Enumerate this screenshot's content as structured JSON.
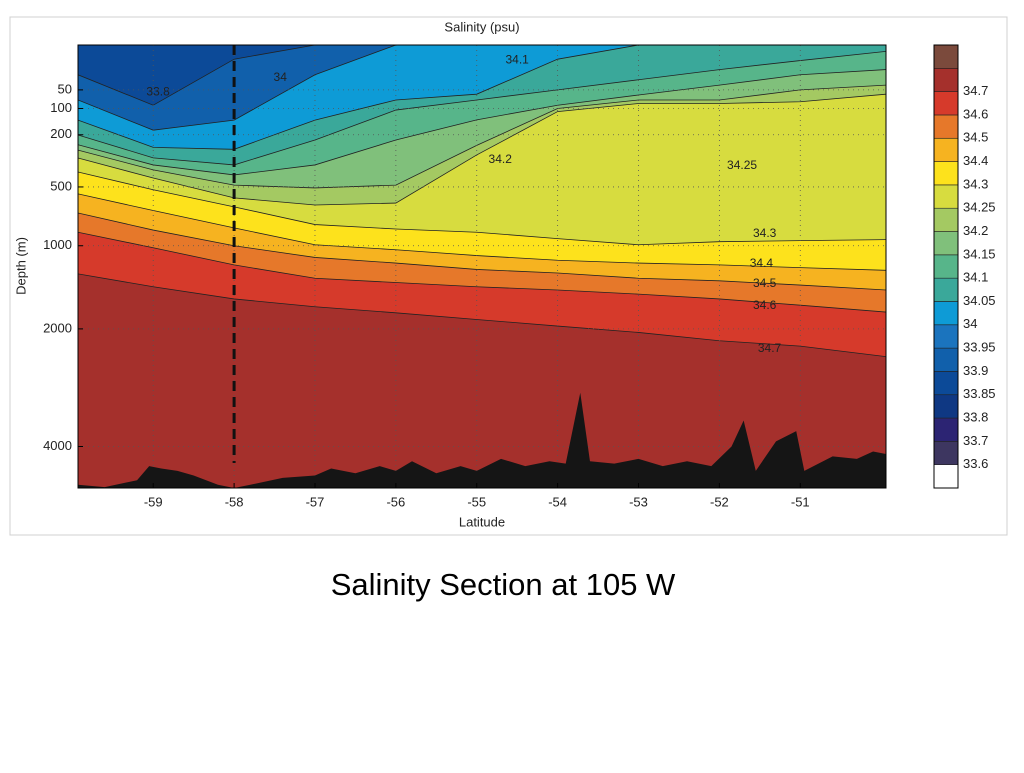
{
  "caption": "Salinity Section at 105 W",
  "chart_data": {
    "type": "contour",
    "title": "Salinity (psu)",
    "x_label": "Latitude",
    "y_label": "Depth (m)",
    "xlim": [
      -59.93,
      -49.94
    ],
    "ylim": [
      0,
      4870
    ],
    "yscale": "sqrt",
    "y_inverted": true,
    "xticks": [
      -59,
      -58,
      -57,
      -56,
      -55,
      -54,
      -53,
      -52,
      -51
    ],
    "yticks": [
      50,
      100,
      200,
      500,
      1000,
      2000,
      4000
    ],
    "grid": true,
    "station_x": -58,
    "colorbar": {
      "levels": [
        33.6,
        33.7,
        33.8,
        33.85,
        33.9,
        33.95,
        34,
        34.05,
        34.1,
        34.15,
        34.2,
        34.25,
        34.3,
        34.4,
        34.5,
        34.6,
        34.7
      ],
      "colors": [
        "#ffffff",
        "#3d3660",
        "#2c2473",
        "#0f3883",
        "#0c4a98",
        "#1160ab",
        "#1b74be",
        "#0e9bd6",
        "#3aa89a",
        "#57b58a",
        "#80c07b",
        "#a4c962",
        "#d7dc3f",
        "#fde21c",
        "#f6b320",
        "#e6782a",
        "#d63a2b",
        "#a5302c",
        "#7b4a3c"
      ]
    },
    "contour_x": [
      -59.93,
      -59,
      -58,
      -57,
      -56,
      -55,
      -54,
      -53,
      -52,
      -51,
      -49.94
    ],
    "contours": [
      {
        "level": 33.9,
        "depth": [
          22,
          90,
          5,
          0,
          0,
          0,
          0,
          0,
          0,
          0,
          0
        ]
      },
      {
        "level": 34,
        "depth": [
          75,
          180,
          140,
          22,
          0,
          0,
          0,
          0,
          0,
          0,
          0
        ]
      },
      {
        "level": 34.05,
        "depth": [
          140,
          260,
          270,
          140,
          75,
          60,
          5,
          0,
          0,
          0,
          0
        ]
      },
      {
        "level": 34.1,
        "depth": [
          201,
          316,
          357,
          224,
          105,
          75,
          50,
          30,
          15,
          6,
          1
        ]
      },
      {
        "level": 34.15,
        "depth": [
          247,
          357,
          419,
          357,
          224,
          139,
          90,
          62,
          40,
          22,
          15
        ]
      },
      {
        "level": 34.2,
        "depth": [
          274,
          387,
          487,
          507,
          487,
          250,
          100,
          75,
          75,
          50,
          40
        ]
      },
      {
        "level": 34.25,
        "depth": [
          317,
          439,
          580,
          635,
          620,
          300,
          110,
          85,
          85,
          80,
          60
        ]
      },
      {
        "level": 34.3,
        "depth": [
          400,
          520,
          650,
          800,
          840,
          870,
          930,
          990,
          960,
          950,
          940
        ]
      },
      {
        "level": 34.4,
        "depth": [
          550,
          680,
          830,
          990,
          1040,
          1100,
          1150,
          1180,
          1200,
          1230,
          1260
        ]
      },
      {
        "level": 34.5,
        "depth": [
          700,
          850,
          1000,
          1120,
          1180,
          1250,
          1290,
          1350,
          1380,
          1430,
          1490
        ]
      },
      {
        "level": 34.6,
        "depth": [
          870,
          1020,
          1200,
          1350,
          1400,
          1450,
          1490,
          1540,
          1600,
          1680,
          1770
        ]
      },
      {
        "level": 34.7,
        "depth": [
          1300,
          1450,
          1600,
          1700,
          1780,
          1870,
          1960,
          2050,
          2170,
          2250,
          2410
        ]
      }
    ],
    "contour_labels": [
      {
        "level": 34.1,
        "x": -54.5,
        "depth": 6
      },
      {
        "level": 34,
        "x": -57.43,
        "depth": 27
      },
      {
        "level": 33.8,
        "x": -58.94,
        "depth": 55
      },
      {
        "level": 34.2,
        "x": -54.71,
        "depth": 328
      },
      {
        "level": 34.25,
        "x": -51.72,
        "depth": 363
      },
      {
        "level": 34.3,
        "x": -51.44,
        "depth": 886
      },
      {
        "level": 34.4,
        "x": -51.48,
        "depth": 1190
      },
      {
        "level": 34.5,
        "x": -51.44,
        "depth": 1417
      },
      {
        "level": 34.6,
        "x": -51.44,
        "depth": 1690
      },
      {
        "level": 34.7,
        "x": -51.38,
        "depth": 2293
      }
    ],
    "bathymetry": {
      "color": "#151515",
      "x": [
        -59.93,
        -59.6,
        -59.2,
        -59.05,
        -58.9,
        -58.7,
        -58.5,
        -58.2,
        -58,
        -57.8,
        -57.4,
        -57,
        -56.8,
        -56.5,
        -56.2,
        -56,
        -55.8,
        -55.5,
        -55.2,
        -55,
        -54.7,
        -54.4,
        -54.1,
        -53.9,
        -53.72,
        -53.6,
        -53.3,
        -53,
        -52.7,
        -52.4,
        -52.1,
        -51.85,
        -51.7,
        -51.55,
        -51.3,
        -51.05,
        -50.95,
        -50.6,
        -50.3,
        -50.1,
        -49.94
      ],
      "depth": [
        4800,
        4850,
        4700,
        4400,
        4450,
        4500,
        4600,
        4800,
        4870,
        4800,
        4650,
        4600,
        4450,
        4550,
        4400,
        4500,
        4300,
        4550,
        4400,
        4500,
        4250,
        4400,
        4300,
        4350,
        3000,
        4300,
        4350,
        4250,
        4400,
        4300,
        4400,
        4000,
        3500,
        4500,
        3900,
        3700,
        4500,
        4200,
        4250,
        4100,
        4150
      ]
    }
  }
}
